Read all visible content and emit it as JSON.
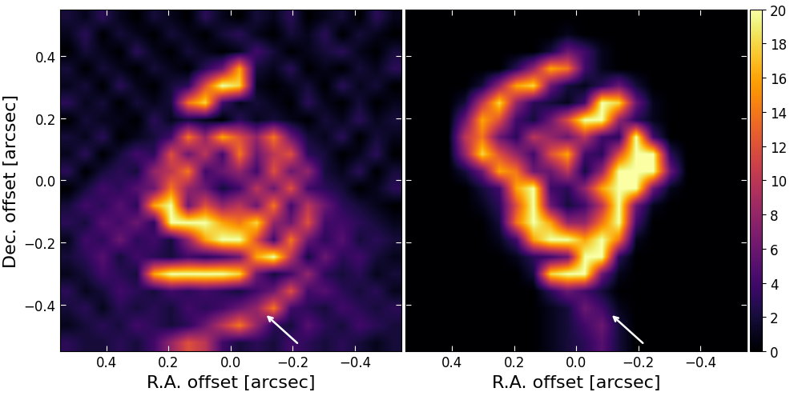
{
  "chart_data": [
    {
      "type": "heatmap",
      "xlabel": "R.A. offset [arcsec]",
      "ylabel": "Dec. offset [arcsec]",
      "xlim": [
        0.55,
        -0.55
      ],
      "ylim": [
        -0.55,
        0.55
      ],
      "xticks": [
        0.4,
        0.2,
        0.0,
        {
          "value": -0.2,
          "label": "−0.2"
        },
        {
          "value": -0.4,
          "label": "−0.4"
        }
      ],
      "yticks": [
        {
          "value": -0.4,
          "label": "−0.4"
        },
        {
          "value": -0.2,
          "label": "−0.2"
        },
        0.0,
        0.2,
        0.4
      ],
      "cells": [
        [
          2,
          1,
          3,
          1,
          0,
          2,
          1,
          0,
          3,
          1,
          0,
          2,
          1,
          3,
          0,
          1,
          2,
          0,
          3,
          1
        ],
        [
          1,
          3,
          0,
          2,
          1,
          0,
          2,
          1,
          0,
          2,
          3,
          1,
          0,
          2,
          1,
          3,
          0,
          2,
          1,
          0
        ],
        [
          0,
          2,
          1,
          0,
          3,
          1,
          0,
          2,
          1,
          0,
          1,
          4,
          2,
          0,
          1,
          2,
          3,
          1,
          0,
          2
        ],
        [
          2,
          0,
          2,
          1,
          0,
          2,
          1,
          0,
          3,
          6,
          16,
          2,
          1,
          3,
          0,
          1,
          0,
          2,
          1,
          3
        ],
        [
          1,
          2,
          0,
          3,
          1,
          0,
          2,
          3,
          12,
          20,
          18,
          1,
          0,
          1,
          2,
          0,
          3,
          1,
          2,
          0
        ],
        [
          3,
          1,
          2,
          0,
          2,
          1,
          2,
          14,
          18,
          4,
          1,
          2,
          1,
          0,
          3,
          1,
          0,
          2,
          0,
          1
        ],
        [
          0,
          2,
          1,
          1,
          0,
          3,
          1,
          2,
          1,
          0,
          3,
          1,
          2,
          1,
          0,
          2,
          1,
          3,
          1,
          2
        ],
        [
          2,
          1,
          3,
          0,
          1,
          2,
          4,
          14,
          8,
          16,
          12,
          8,
          14,
          6,
          2,
          1,
          3,
          0,
          2,
          1
        ],
        [
          1,
          3,
          0,
          2,
          4,
          3,
          12,
          6,
          10,
          4,
          14,
          6,
          10,
          12,
          3,
          2,
          0,
          1,
          3,
          0
        ],
        [
          3,
          0,
          2,
          3,
          2,
          8,
          10,
          14,
          4,
          6,
          8,
          4,
          12,
          6,
          8,
          2,
          1,
          3,
          0,
          2
        ],
        [
          0,
          2,
          4,
          3,
          5,
          6,
          14,
          8,
          6,
          2,
          4,
          10,
          6,
          12,
          4,
          3,
          2,
          0,
          1,
          3
        ],
        [
          2,
          4,
          3,
          5,
          3,
          16,
          20,
          6,
          12,
          8,
          10,
          6,
          14,
          4,
          10,
          6,
          3,
          2,
          1,
          0
        ],
        [
          3,
          2,
          5,
          4,
          6,
          3,
          20,
          20,
          20,
          16,
          14,
          18,
          8,
          6,
          12,
          4,
          4,
          3,
          2,
          1
        ],
        [
          1,
          4,
          3,
          6,
          3,
          4,
          2,
          8,
          16,
          20,
          20,
          12,
          4,
          14,
          6,
          3,
          5,
          2,
          3,
          2
        ],
        [
          2,
          3,
          5,
          2,
          4,
          3,
          2,
          4,
          3,
          4,
          6,
          16,
          20,
          10,
          2,
          6,
          3,
          4,
          2,
          1
        ],
        [
          1,
          2,
          4,
          3,
          2,
          16,
          20,
          20,
          20,
          20,
          18,
          6,
          2,
          4,
          8,
          3,
          2,
          3,
          1,
          2
        ],
        [
          3,
          1,
          2,
          4,
          3,
          2,
          4,
          3,
          4,
          3,
          2,
          4,
          6,
          12,
          4,
          5,
          3,
          2,
          3,
          1
        ],
        [
          2,
          3,
          1,
          3,
          2,
          3,
          2,
          4,
          3,
          4,
          6,
          8,
          14,
          4,
          3,
          2,
          4,
          3,
          2,
          3
        ],
        [
          1,
          2,
          3,
          2,
          4,
          3,
          2,
          3,
          6,
          10,
          14,
          8,
          3,
          2,
          5,
          3,
          2,
          4,
          3,
          2
        ],
        [
          3,
          2,
          2,
          3,
          2,
          4,
          8,
          12,
          10,
          4,
          2,
          3,
          2,
          4,
          3,
          2,
          3,
          2,
          1,
          2
        ]
      ],
      "colorbar_range": [
        0,
        20
      ]
    },
    {
      "type": "heatmap",
      "xlabel": "R.A. offset [arcsec]",
      "xlim": [
        0.55,
        -0.55
      ],
      "ylim": [
        -0.55,
        0.55
      ],
      "xticks": [
        0.4,
        0.2,
        0.0,
        {
          "value": -0.2,
          "label": "−0.2"
        },
        {
          "value": -0.4,
          "label": "−0.4"
        }
      ],
      "yticks": [
        {
          "value": -0.4,
          "label": "−0.4"
        },
        {
          "value": -0.2,
          "label": "−0.2"
        },
        0.0,
        0.2,
        0.4
      ],
      "tick_labels": "x",
      "cells": [
        [
          0,
          0,
          0,
          0,
          0,
          0,
          0,
          0,
          0,
          0,
          0,
          0,
          0,
          0,
          0,
          0,
          0,
          0,
          0,
          0
        ],
        [
          0,
          0,
          0,
          0,
          0,
          0,
          0,
          0,
          0,
          1,
          0,
          0,
          0,
          0,
          0,
          0,
          0,
          0,
          0,
          0
        ],
        [
          0,
          0,
          0,
          0,
          0,
          0,
          0,
          0,
          2,
          6,
          4,
          1,
          0,
          0,
          0,
          0,
          0,
          0,
          0,
          0
        ],
        [
          0,
          0,
          0,
          0,
          0,
          0,
          3,
          8,
          16,
          14,
          4,
          1,
          0,
          0,
          0,
          0,
          0,
          0,
          0,
          0
        ],
        [
          0,
          0,
          0,
          0,
          2,
          8,
          16,
          18,
          6,
          2,
          1,
          3,
          6,
          2,
          0,
          0,
          0,
          0,
          0,
          0
        ],
        [
          0,
          0,
          0,
          2,
          10,
          18,
          8,
          3,
          2,
          1,
          4,
          20,
          18,
          6,
          1,
          0,
          0,
          0,
          0,
          0
        ],
        [
          0,
          0,
          0,
          6,
          16,
          12,
          4,
          2,
          6,
          12,
          20,
          20,
          8,
          3,
          1,
          0,
          0,
          0,
          0,
          0
        ],
        [
          0,
          0,
          0,
          10,
          14,
          6,
          3,
          10,
          8,
          6,
          10,
          4,
          3,
          20,
          4,
          0,
          0,
          0,
          0,
          0
        ],
        [
          0,
          0,
          0,
          8,
          18,
          12,
          8,
          4,
          12,
          16,
          4,
          3,
          12,
          20,
          20,
          3,
          0,
          0,
          0,
          0
        ],
        [
          0,
          0,
          0,
          2,
          6,
          16,
          14,
          6,
          6,
          10,
          2,
          8,
          20,
          20,
          20,
          6,
          0,
          0,
          0,
          0
        ],
        [
          0,
          0,
          0,
          0,
          2,
          4,
          16,
          20,
          4,
          3,
          8,
          16,
          20,
          20,
          6,
          1,
          0,
          0,
          0,
          0
        ],
        [
          0,
          0,
          0,
          0,
          1,
          3,
          12,
          20,
          6,
          2,
          4,
          10,
          20,
          6,
          1,
          0,
          0,
          0,
          0,
          0
        ],
        [
          0,
          0,
          0,
          0,
          0,
          2,
          14,
          20,
          16,
          8,
          8,
          14,
          20,
          4,
          0,
          0,
          0,
          0,
          0,
          0
        ],
        [
          0,
          0,
          0,
          0,
          0,
          1,
          4,
          16,
          20,
          20,
          16,
          20,
          14,
          1,
          0,
          0,
          0,
          0,
          0,
          0
        ],
        [
          0,
          0,
          0,
          0,
          0,
          0,
          1,
          3,
          4,
          6,
          20,
          20,
          3,
          0,
          0,
          0,
          0,
          0,
          0,
          0
        ],
        [
          0,
          0,
          0,
          0,
          0,
          0,
          0,
          2,
          18,
          20,
          20,
          6,
          1,
          0,
          0,
          0,
          0,
          0,
          0,
          0
        ],
        [
          0,
          0,
          0,
          0,
          0,
          0,
          0,
          0,
          3,
          6,
          4,
          2,
          0,
          0,
          0,
          0,
          0,
          0,
          0,
          0
        ],
        [
          0,
          0,
          0,
          0,
          0,
          0,
          0,
          0,
          1,
          2,
          6,
          4,
          1,
          0,
          0,
          0,
          0,
          0,
          0,
          0
        ],
        [
          0,
          0,
          0,
          0,
          0,
          0,
          0,
          0,
          1,
          2,
          4,
          6,
          2,
          0,
          0,
          0,
          0,
          0,
          0,
          0
        ],
        [
          0,
          0,
          0,
          0,
          0,
          0,
          0,
          0,
          1,
          2,
          3,
          5,
          2,
          0,
          0,
          0,
          0,
          0,
          0,
          0
        ]
      ],
      "colorbar_range": [
        0,
        20
      ],
      "colorbar_ticks": [
        0,
        2,
        4,
        6,
        8,
        10,
        12,
        14,
        16,
        18,
        20
      ]
    }
  ]
}
